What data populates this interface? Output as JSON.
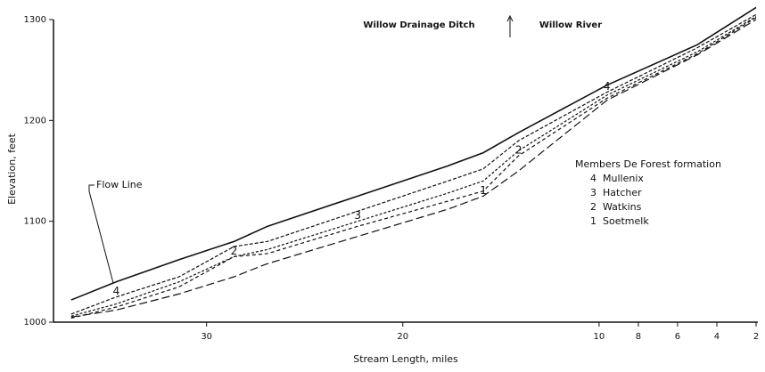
{
  "chart_data": {
    "type": "line",
    "xlabel": "Stream Length, miles",
    "ylabel": "Elevation, feet",
    "annotations": {
      "left_reach": "Willow Drainage Ditch",
      "right_reach": "Willow River",
      "flow_line": "Flow Line"
    },
    "legend_title": "Members De Forest formation",
    "xlim": [
      37.8,
      2
    ],
    "xticks": [
      30,
      20,
      10,
      8,
      6,
      4,
      2
    ],
    "ylim": [
      1000,
      1300
    ],
    "yticks": [
      1000,
      1100,
      1200,
      1300
    ],
    "x": [
      36.9,
      34.6,
      31.4,
      28.6,
      26.9,
      22.3,
      17.7,
      15.9,
      14.1,
      9.6,
      5.0,
      2.0
    ],
    "series": [
      {
        "name": "Flow Line",
        "color": "#111",
        "values": [
          1022,
          1040,
          1062,
          1080,
          1095,
          1125,
          1155,
          1168,
          1188,
          1235,
          1275,
          1312
        ]
      },
      {
        "number": "4",
        "name": "Mullenix",
        "color": "#111",
        "values": [
          1008,
          1025,
          1045,
          1075,
          1080,
          1110,
          1140,
          1152,
          1180,
          1228,
          1272,
          1305
        ]
      },
      {
        "number": "3",
        "name": "Hatcher",
        "color": "#111",
        "values": [
          1006,
          1018,
          1040,
          1065,
          1072,
          1100,
          1128,
          1140,
          1170,
          1225,
          1268,
          1303
        ]
      },
      {
        "number": "2",
        "name": "Watkins",
        "color": "#111",
        "values": [
          1004,
          1015,
          1035,
          1065,
          1068,
          1095,
          1120,
          1130,
          1165,
          1222,
          1266,
          1302
        ]
      },
      {
        "number": "1",
        "name": "Soetmelk",
        "color": "#111",
        "values": [
          1005,
          1012,
          1028,
          1045,
          1058,
          1085,
          1112,
          1125,
          1150,
          1220,
          1265,
          1300
        ]
      }
    ]
  }
}
